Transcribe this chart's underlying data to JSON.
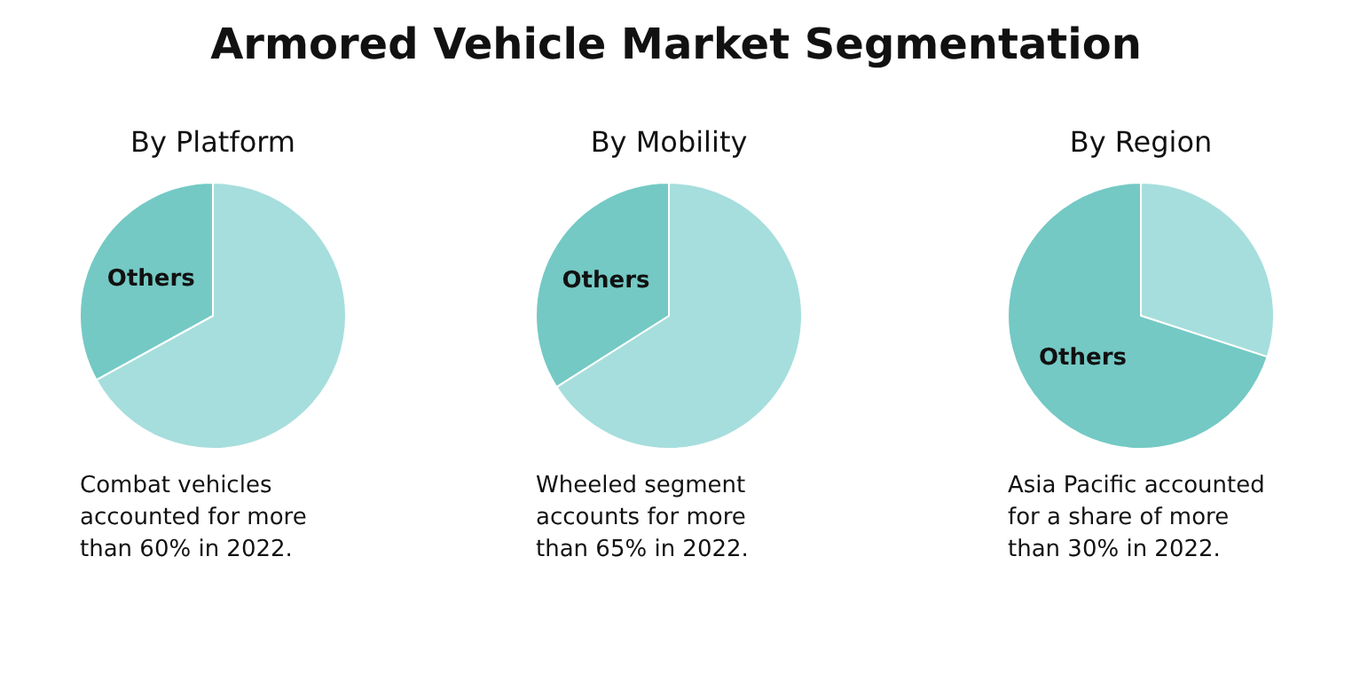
{
  "chart_data": [
    {
      "type": "other",
      "title": "Armored Vehicle Market Segmentation"
    },
    {
      "type": "pie",
      "title": "By Platform",
      "categories": [
        null,
        "Others"
      ],
      "values": [
        67,
        33
      ],
      "colors": [
        "#a6dedd",
        "#74c9c4"
      ],
      "legend": false,
      "annotations": [
        "Combat vehicles accounted for more than 60% in 2022."
      ]
    },
    {
      "type": "pie",
      "title": "By Mobility",
      "categories": [
        null,
        "Others"
      ],
      "values": [
        66,
        34
      ],
      "colors": [
        "#a6dedd",
        "#74c9c4"
      ],
      "legend": false,
      "annotations": [
        "Wheeled segment accounts for more than 65% in 2022."
      ]
    },
    {
      "type": "pie",
      "title": "By Region",
      "categories": [
        null,
        "Others"
      ],
      "values": [
        30,
        70
      ],
      "colors": [
        "#a6dedd",
        "#74c9c4"
      ],
      "legend": false,
      "annotations": [
        "Asia Pacific accounted for a share of more than 30% in 2022."
      ]
    }
  ]
}
